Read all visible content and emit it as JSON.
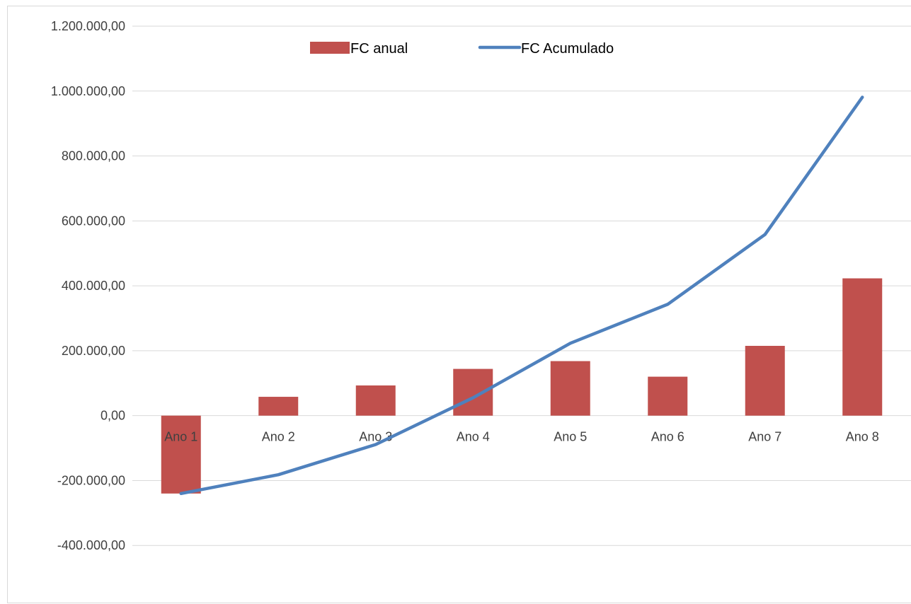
{
  "chart_data": {
    "type": "bar",
    "categories": [
      "Ano 1",
      "Ano 2",
      "Ano 3",
      "Ano 4",
      "Ano 5",
      "Ano 6",
      "Ano 7",
      "Ano 8"
    ],
    "series": [
      {
        "name": "FC anual",
        "type": "bar",
        "color": "#c0504d",
        "values": [
          -240000,
          58000,
          93000,
          144000,
          168000,
          120000,
          215000,
          423000
        ]
      },
      {
        "name": "FC Acumulado",
        "type": "line",
        "color": "#4f81bd",
        "values": [
          -240000,
          -182000,
          -89000,
          55000,
          223000,
          343000,
          558000,
          981000
        ]
      }
    ],
    "ylim": [
      -600000,
      1200000
    ],
    "yticks": [
      1200000,
      1000000,
      800000,
      600000,
      400000,
      200000,
      0,
      -200000,
      -400000
    ],
    "ytick_labels": [
      "1.200.000,00",
      "1.000.000,00",
      "800.000,00",
      "600.000,00",
      "400.000,00",
      "200.000,00",
      "0,00",
      "-200.000,00",
      "-400.000,00"
    ],
    "title": "",
    "xlabel": "",
    "ylabel": "",
    "grid": true,
    "legend_position": "top"
  }
}
